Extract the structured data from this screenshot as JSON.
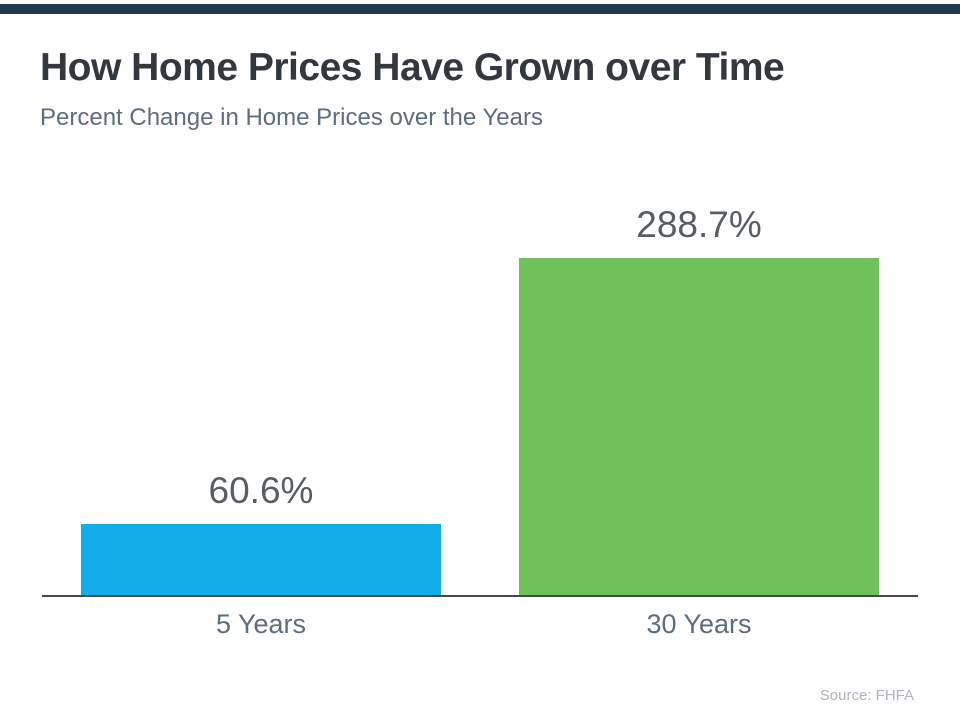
{
  "header": {
    "title": "How Home Prices Have Grown over Time",
    "subtitle": "Percent Change in Home Prices over the Years"
  },
  "chart_data": {
    "type": "bar",
    "categories": [
      "5 Years",
      "30 Years"
    ],
    "values": [
      60.6,
      288.7
    ],
    "value_labels": [
      "60.6%",
      "288.7%"
    ],
    "bar_colors": [
      "#12ade8",
      "#6fc15a"
    ],
    "title": "How Home Prices Have Grown over Time",
    "subtitle": "Percent Change in Home Prices over the Years",
    "xlabel": "",
    "ylabel": "",
    "ylim": [
      0,
      300
    ],
    "grid": false,
    "legend": false,
    "annotations": [
      "Source: FHFA"
    ]
  },
  "footer": {
    "source": "Source: FHFA"
  },
  "colors": {
    "top_bar": "#1f3a4d",
    "title_text": "#33383e",
    "subtitle_text": "#5b6e80",
    "value_label_text": "#585d63",
    "axis_label_text": "#5b6e80",
    "axis_line": "#474747",
    "source_text": "#aeb4ba",
    "bar_blue": "#12ade8",
    "bar_green": "#6fc15a"
  }
}
